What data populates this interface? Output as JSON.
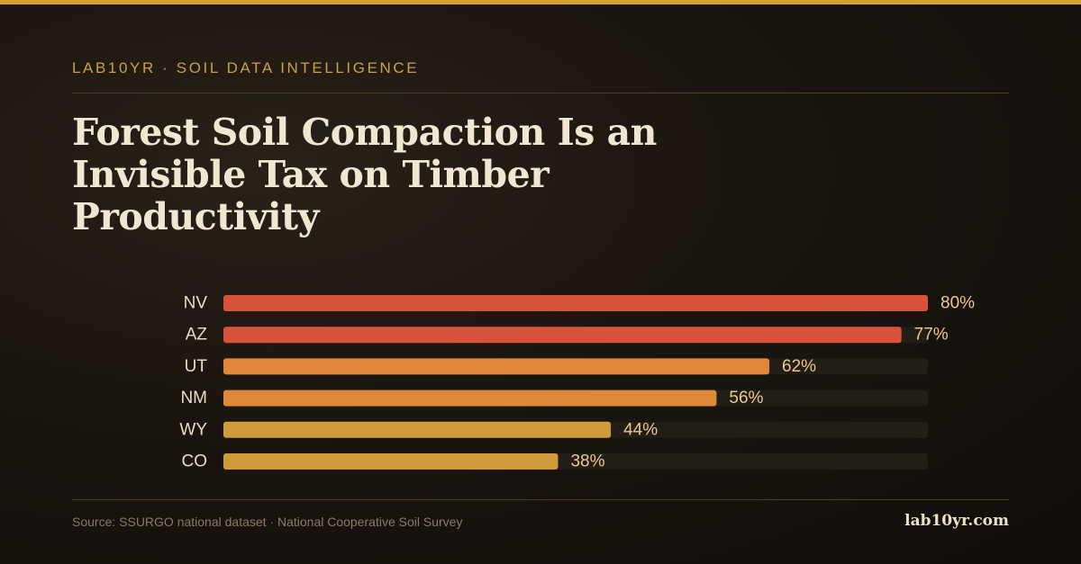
{
  "header": {
    "eyebrow": "LAB10YR · SOIL DATA INTELLIGENCE",
    "title": "Forest Soil Compaction Is an Invisible Tax on Timber Productivity"
  },
  "chart_data": {
    "type": "bar",
    "orientation": "horizontal",
    "categories": [
      "NV",
      "AZ",
      "UT",
      "NM",
      "WY",
      "CO"
    ],
    "values": [
      80,
      77,
      62,
      56,
      44,
      38
    ],
    "value_labels": [
      "80%",
      "77%",
      "62%",
      "56%",
      "44%",
      "38%"
    ],
    "unit": "%",
    "xlim": [
      0,
      80
    ],
    "bar_colors": [
      "#d9533b",
      "#d9533b",
      "#e0883a",
      "#e0883a",
      "#cf9a3a",
      "#cf9a3a"
    ],
    "track_color": "#231d17",
    "grid": false,
    "legend": "none"
  },
  "footer": {
    "source": "Source: SSURGO national dataset · National Cooperative Soil Survey",
    "brand": "lab10yr.com"
  },
  "colors": {
    "accent": "#d8a233",
    "background": "#15110d",
    "title": "#f1e6d1",
    "label": "#e8dcc4",
    "value_label": "#e9c98d"
  }
}
